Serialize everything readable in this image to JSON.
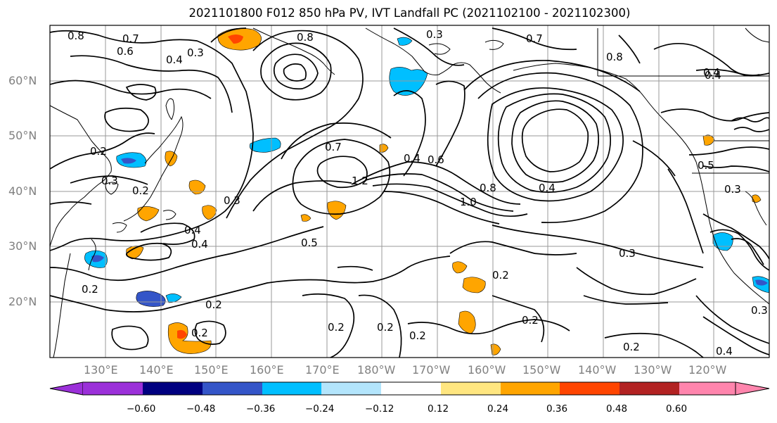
{
  "title": "2021101800 F012 850 hPa PV, IVT Landfall PC (2021102100 - 2021102300)",
  "lat_labels": [
    "60°N",
    "50°N",
    "40°N",
    "30°N",
    "20°N"
  ],
  "lon_labels": [
    "130°E",
    "140°E",
    "150°E",
    "160°E",
    "170°E",
    "180°W",
    "170°W",
    "160°W",
    "150°W",
    "140°W",
    "130°W",
    "120°W"
  ],
  "colorbar": {
    "labels": [
      "−0.60",
      "−0.48",
      "−0.36",
      "−0.24",
      "−0.12",
      "0.12",
      "0.24",
      "0.36",
      "0.48",
      "0.60"
    ],
    "colors": [
      "#9b30d9",
      "#000080",
      "#3455c8",
      "#00bfff",
      "#b3e5fc",
      "#ffffff",
      "#ffe680",
      "#ffa500",
      "#ff4500",
      "#b22222",
      "#ff85ad"
    ]
  },
  "contour_labels": [
    "0.8",
    "0.7",
    "0.6",
    "0.3",
    "0.4",
    "0.8",
    "0.3",
    "0.7",
    "0.8",
    "0.4",
    "0.2",
    "0.3",
    "0.2",
    "0.7",
    "0.6",
    "0.4",
    "0.4",
    "1.2",
    "1.0",
    "0.8",
    "0.4",
    "0.5",
    "0.3",
    "0.4",
    "0.4",
    "0.5",
    "0.3",
    "0.3",
    "0.2",
    "0.2",
    "0.2",
    "0.2",
    "0.2",
    "0.2",
    "0.2",
    "0.2",
    "0.3",
    "0.4",
    "0.2"
  ]
}
